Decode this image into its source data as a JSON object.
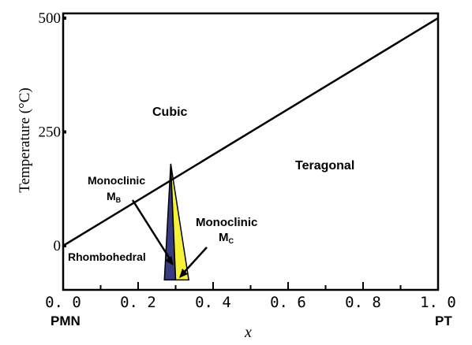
{
  "chart_data": {
    "type": "area",
    "xlabel": "x",
    "ylabel": "Temperature (°C)",
    "xlim": [
      0,
      1
    ],
    "xticks": [
      "0. 0",
      "0. 2",
      "0. 4",
      "0. 6",
      "0. 8",
      "1. 0"
    ],
    "yticks": [
      {
        "value": 0,
        "label": "0"
      },
      {
        "value": 250,
        "label": "250"
      },
      {
        "value": 500,
        "label": "500"
      }
    ],
    "endpoints": {
      "left": "PMN",
      "right": "PT"
    },
    "boundary_line": {
      "x": [
        0.0,
        1.0
      ],
      "y": [
        0,
        500
      ]
    },
    "regions": [
      {
        "label": "Cubic",
        "sub": "",
        "color": "#ffffff"
      },
      {
        "label": "Teragonal",
        "sub": "",
        "color": "#ffffff"
      },
      {
        "label": "Rhombohedral",
        "sub": "",
        "color": "#ffffff"
      },
      {
        "label": "Monoclinic",
        "sub": "B",
        "color": "#3a3a80",
        "polygon": [
          [
            0.27,
            -75
          ],
          [
            0.287,
            180
          ],
          [
            0.3,
            -75
          ]
        ]
      },
      {
        "label": "Monoclinic",
        "sub": "C",
        "color": "#f6f23a",
        "polygon": [
          [
            0.287,
            180
          ],
          [
            0.3,
            -75
          ],
          [
            0.335,
            -75
          ]
        ]
      }
    ]
  }
}
